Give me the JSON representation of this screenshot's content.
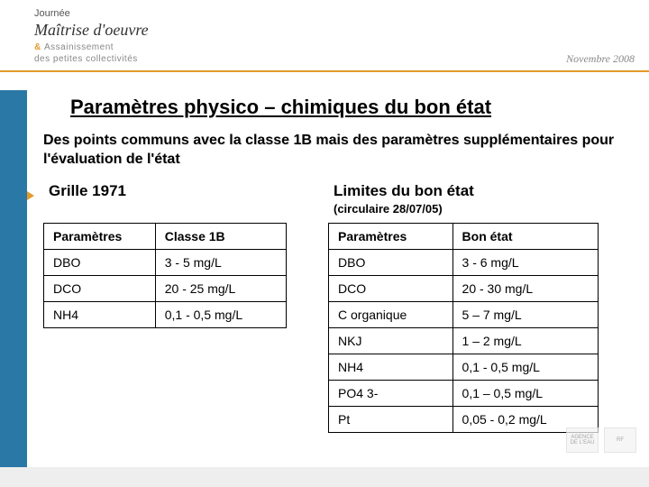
{
  "header": {
    "line1": "Journée",
    "line2": "Maîtrise d'oeuvre",
    "line3_prefix": "& ",
    "line3_main": "Assainissement",
    "line3_sub": "des petites collectivités",
    "date": "Novembre 2008"
  },
  "title": "Paramètres physico – chimiques du bon état",
  "subtitle": "Des points communs avec la classe 1B mais des paramètres supplémentaires pour l'évaluation de l'état",
  "left_table": {
    "heading": "Grille 1971",
    "columns": [
      "Paramètres",
      "Classe 1B"
    ],
    "rows": [
      [
        "DBO",
        "3 - 5 mg/L"
      ],
      [
        "DCO",
        "20 - 25 mg/L"
      ],
      [
        "NH4",
        "0,1 - 0,5 mg/L"
      ]
    ]
  },
  "right_table": {
    "heading": "Limites du bon état",
    "subheading": "(circulaire 28/07/05)",
    "columns": [
      "Paramètres",
      "Bon état"
    ],
    "rows": [
      [
        "DBO",
        "3 - 6 mg/L"
      ],
      [
        "DCO",
        "20 - 30 mg/L"
      ],
      [
        "C organique",
        "5 – 7 mg/L"
      ],
      [
        "NKJ",
        "1 – 2 mg/L"
      ],
      [
        "NH4",
        "0,1 - 0,5 mg/L"
      ],
      [
        "PO4 3-",
        "0,1 – 0,5 mg/L"
      ],
      [
        "Pt",
        "0,05 - 0,2 mg/L"
      ]
    ]
  },
  "colors": {
    "accent_orange": "#e39a2a",
    "side_blue": "#2a78a6",
    "rule": "#e39a2a",
    "bg": "#ffffff"
  },
  "logos": [
    "AGENCE DE L'EAU",
    "RF"
  ]
}
